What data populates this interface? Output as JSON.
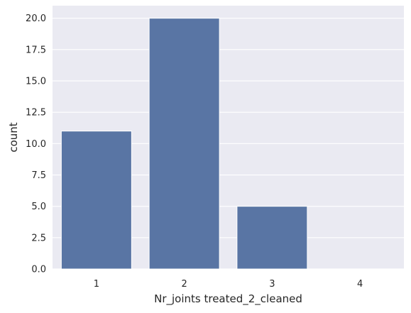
{
  "chart_data": {
    "type": "bar",
    "categories": [
      "1",
      "2",
      "3",
      "4"
    ],
    "values": [
      11,
      20,
      5,
      0
    ],
    "xlabel": "Nr_joints treated_2_cleaned",
    "ylabel": "count",
    "ylim": [
      0,
      21
    ],
    "yticks": [
      0.0,
      2.5,
      5.0,
      7.5,
      10.0,
      12.5,
      15.0,
      17.5,
      20.0
    ],
    "ytick_labels": [
      "0.0",
      "2.5",
      "5.0",
      "7.5",
      "10.0",
      "12.5",
      "15.0",
      "17.5",
      "20.0"
    ],
    "grid": true,
    "colors": {
      "background": "#eaeaf2",
      "bar": "#5975a4",
      "grid": "#ffffff"
    }
  }
}
